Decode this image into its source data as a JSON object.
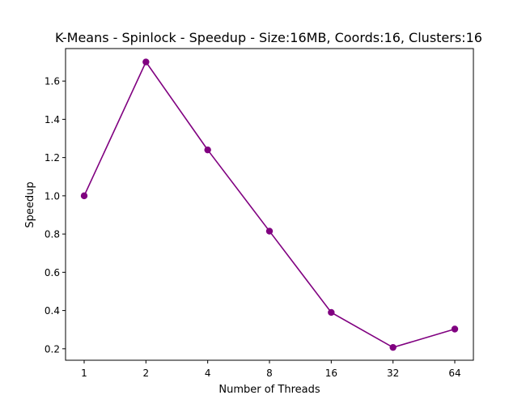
{
  "chart_data": {
    "type": "line",
    "title": "K-Means - Spinlock - Speedup - Size:16MB, Coords:16, Clusters:16",
    "xlabel": "Number of Threads",
    "ylabel": "Speedup",
    "categories": [
      "1",
      "2",
      "4",
      "8",
      "16",
      "32",
      "64"
    ],
    "series": [
      {
        "values": [
          1.0,
          1.7,
          1.24,
          0.815,
          0.39,
          0.207,
          0.303
        ]
      }
    ],
    "ylim": [
      0.14,
      1.77
    ],
    "yticks": [
      0.2,
      0.4,
      0.6,
      0.8,
      1.0,
      1.2,
      1.4,
      1.6
    ],
    "ytick_labels": [
      "0.2",
      "0.4",
      "0.6",
      "0.8",
      "1.0",
      "1.2",
      "1.4",
      "1.6"
    ],
    "grid": false,
    "line_color": "#800080"
  }
}
